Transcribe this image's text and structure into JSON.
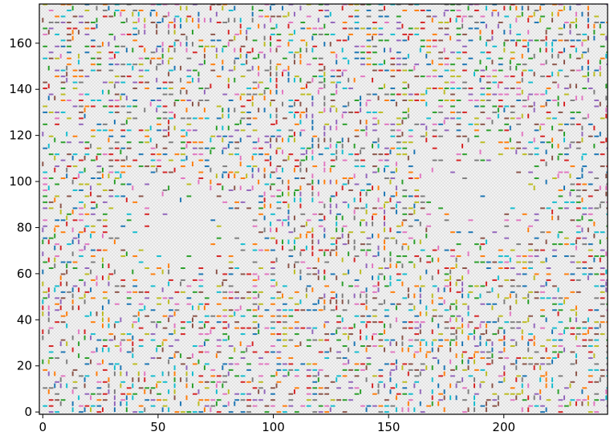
{
  "chart_data": {
    "type": "line-segments",
    "title": "",
    "xlabel": "",
    "ylabel": "",
    "xlim": [
      -1.5,
      245
    ],
    "ylim": [
      -1,
      177
    ],
    "xticks": [
      0,
      50,
      100,
      150,
      200
    ],
    "yticks": [
      0,
      20,
      40,
      60,
      80,
      100,
      120,
      140,
      160
    ],
    "xtick_labels": [
      "0",
      "50",
      "100",
      "150",
      "200"
    ],
    "ytick_labels": [
      "0",
      "20",
      "40",
      "60",
      "80",
      "100",
      "120",
      "140",
      "160"
    ],
    "grid": false,
    "background_color": "#f0f0f0",
    "palette": [
      "#1f77b4",
      "#ff7f0e",
      "#2ca02c",
      "#d62728",
      "#9467bd",
      "#8c564b",
      "#e377c2",
      "#7f7f7f",
      "#bcbd22",
      "#17becf"
    ],
    "sparse_regions_center": [
      [
        60,
        78
      ],
      [
        190,
        95
      ]
    ]
  }
}
